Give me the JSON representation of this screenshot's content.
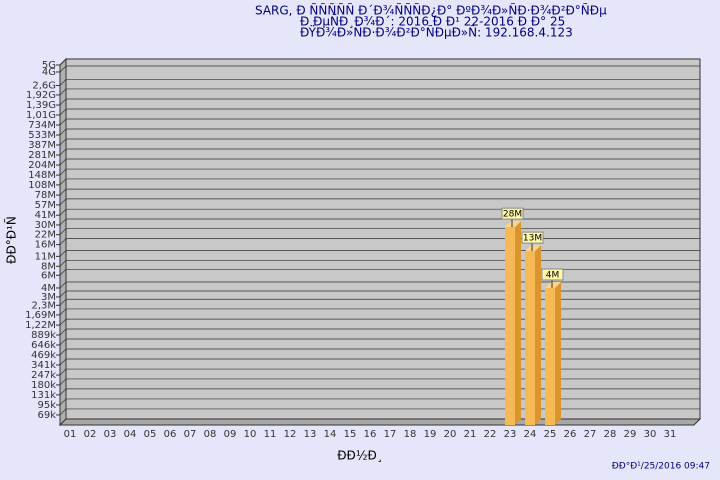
{
  "chart_data": {
    "type": "bar",
    "title_lines": [
      "SARG,  Đ ÑÑÑÑÑ Đ´Đ¾ÑÑÑĐ¿Đ° ĐºĐ¾Đ»ÑĐ·Đ¾Đ²Đ°ÑĐµ",
      "Đ ĐµÑĐ¸Đ¾Đ´: 2016 Đ Đ¹ 22-2016 Đ Đ° 25",
      "ĐŸĐ¾Đ»ÑĐ·Đ¾Đ²Đ°ÑĐµĐ»Ñ: 192.168.4.123"
    ],
    "y_label": "ĐĐ°Đ¹Ñ",
    "x_label": "ĐĐ½Đ¸",
    "footer": "ĐĐ°Đ¹/25/2016 09:47",
    "categories": [
      "01",
      "02",
      "03",
      "04",
      "05",
      "06",
      "07",
      "08",
      "09",
      "10",
      "11",
      "12",
      "13",
      "14",
      "15",
      "16",
      "17",
      "18",
      "19",
      "20",
      "21",
      "22",
      "23",
      "24",
      "25",
      "26",
      "27",
      "28",
      "29",
      "30",
      "31"
    ],
    "values": [
      null,
      null,
      null,
      null,
      null,
      null,
      null,
      null,
      null,
      null,
      null,
      null,
      null,
      null,
      null,
      null,
      null,
      null,
      null,
      null,
      null,
      null,
      28000000,
      13000000,
      4000000,
      null,
      null,
      null,
      null,
      null,
      null
    ],
    "value_labels": [
      null,
      null,
      null,
      null,
      null,
      null,
      null,
      null,
      null,
      null,
      null,
      null,
      null,
      null,
      null,
      null,
      null,
      null,
      null,
      null,
      null,
      null,
      "28M",
      "13M",
      "4M",
      null,
      null,
      null,
      null,
      null,
      null
    ],
    "color": "#f7b955",
    "log_scale": true,
    "grid": true,
    "ylim": [
      50000,
      5000000000
    ],
    "yticks": [
      {
        "value": 5000000000,
        "label": "5G"
      },
      {
        "value": 4000000000,
        "label": "4G"
      },
      {
        "value": 2600000000,
        "label": "2,6G"
      },
      {
        "value": 1920000000,
        "label": "1,92G"
      },
      {
        "value": 1390000000,
        "label": "1,39G"
      },
      {
        "value": 1010000000,
        "label": "1,01G"
      },
      {
        "value": 734000000,
        "label": "734M"
      },
      {
        "value": 533000000,
        "label": "533M"
      },
      {
        "value": 387000000,
        "label": "387M"
      },
      {
        "value": 281000000,
        "label": "281M"
      },
      {
        "value": 204000000,
        "label": "204M"
      },
      {
        "value": 148000000,
        "label": "148M"
      },
      {
        "value": 108000000,
        "label": "108M"
      },
      {
        "value": 78000000,
        "label": "78M"
      },
      {
        "value": 57000000,
        "label": "57M"
      },
      {
        "value": 41000000,
        "label": "41M"
      },
      {
        "value": 30000000,
        "label": "30M"
      },
      {
        "value": 22000000,
        "label": "22M"
      },
      {
        "value": 16000000,
        "label": "16M"
      },
      {
        "value": 11000000,
        "label": "11M"
      },
      {
        "value": 8000000,
        "label": "8M"
      },
      {
        "value": 6000000,
        "label": "6M"
      },
      {
        "value": 4000000,
        "label": "4M"
      },
      {
        "value": 3000000,
        "label": "3M"
      },
      {
        "value": 2300000,
        "label": "2,3M"
      },
      {
        "value": 1690000,
        "label": "1,69M"
      },
      {
        "value": 1220000,
        "label": "1,22M"
      },
      {
        "value": 889000,
        "label": "889k"
      },
      {
        "value": 646000,
        "label": "646k"
      },
      {
        "value": 469000,
        "label": "469k"
      },
      {
        "value": 341000,
        "label": "341k"
      },
      {
        "value": 247000,
        "label": "247k"
      },
      {
        "value": 180000,
        "label": "180k"
      },
      {
        "value": 131000,
        "label": "131k"
      },
      {
        "value": 95000,
        "label": "95k"
      },
      {
        "value": 69000,
        "label": "69k"
      }
    ]
  }
}
